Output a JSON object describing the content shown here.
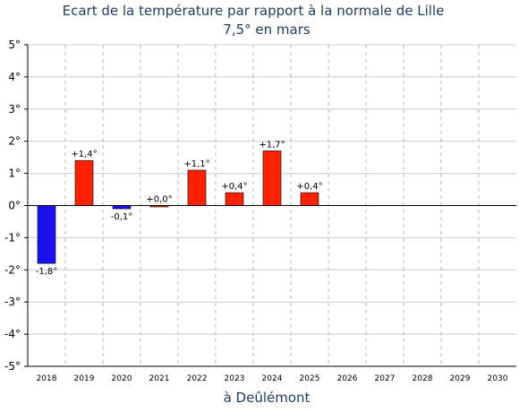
{
  "chart_data": {
    "type": "bar",
    "title": "Ecart de la température par rapport à la normale de Lille",
    "subtitle": "7,5° en mars",
    "xlabel": "à Deûlémont",
    "ylabel": "",
    "ylim": [
      -5,
      5
    ],
    "y_ticks": [
      "-5°",
      "-4°",
      "-3°",
      "-2°",
      "-1°",
      "0°",
      "1°",
      "2°",
      "3°",
      "4°",
      "5°"
    ],
    "categories": [
      "2018",
      "2019",
      "2020",
      "2021",
      "2022",
      "2023",
      "2024",
      "2025",
      "2026",
      "2027",
      "2028",
      "2029",
      "2030"
    ],
    "values": [
      -1.8,
      1.4,
      -0.1,
      0.0,
      1.1,
      0.4,
      1.7,
      0.4,
      null,
      null,
      null,
      null,
      null
    ],
    "data_labels": [
      "-1,8°",
      "+1,4°",
      "-0,1°",
      "+0,0°",
      "+1,1°",
      "+0,4°",
      "+1,7°",
      "+0,4°",
      "",
      "",
      "",
      "",
      ""
    ],
    "colors": {
      "positive": "#ff2200",
      "negative": "#1a10ee"
    },
    "grid": true,
    "legend": "none"
  }
}
